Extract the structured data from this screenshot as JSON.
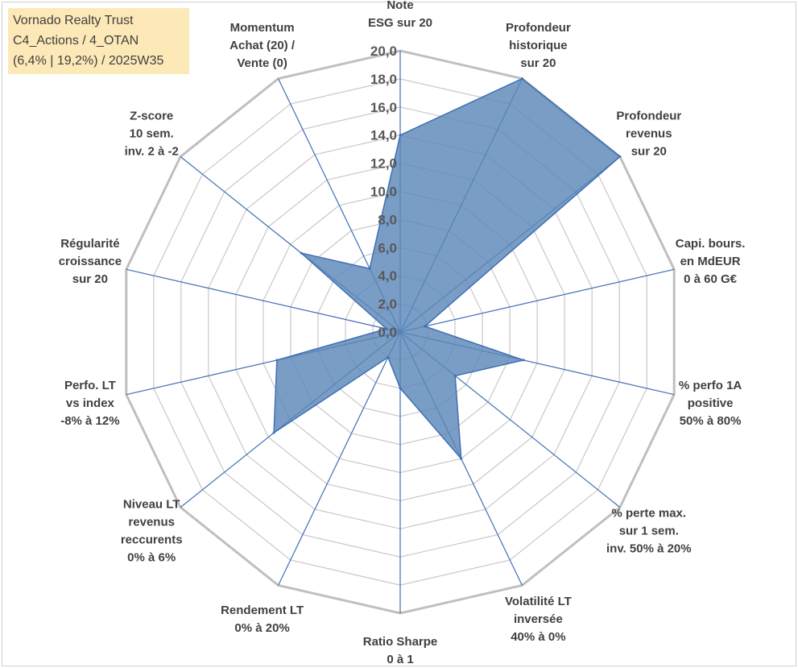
{
  "info_box": {
    "line1": "Vornado Realty Trust",
    "line2": "C4_Actions / 4_OTAN",
    "line3": "(6,4% | 19,2%) / 2025W35"
  },
  "colors": {
    "fill": "#5b87b8",
    "stroke": "#3f6fb5",
    "grid": "#c8c8c8",
    "info_bg": "#fde9b8"
  },
  "chart_data": {
    "type": "radar",
    "rlim": [
      0,
      20
    ],
    "tick_labels": [
      "0,0",
      "2,0",
      "4,0",
      "6,0",
      "8,0",
      "10,0",
      "12,0",
      "14,0",
      "16,0",
      "18,0",
      "20,0"
    ],
    "axes": [
      [
        "Note",
        "ESG sur 20"
      ],
      [
        "Profondeur",
        "historique",
        "sur 20"
      ],
      [
        "Profondeur",
        "revenus",
        "sur 20"
      ],
      [
        "Capi. bours.",
        "en MdEUR",
        "0 à 60 G€"
      ],
      [
        "% perfo 1A",
        "positive",
        "50% à 80%"
      ],
      [
        "% perte max.",
        "sur 1 sem.",
        "inv. 50% à 20%"
      ],
      [
        "Volatilité LT",
        "inversée",
        "40% à 0%"
      ],
      [
        "Ratio Sharpe",
        "0 à 1"
      ],
      [
        "Rendement LT",
        "0% à 20%"
      ],
      [
        "Niveau LT",
        "revenus",
        "reccurents",
        "0% à 6%"
      ],
      [
        "Perfo. LT",
        "vs index",
        "-8% à 12%"
      ],
      [
        "Régularité",
        "croissance",
        "sur 20"
      ],
      [
        "Z-score",
        "10 sem.",
        "inv. 2 à -2"
      ],
      [
        "Momentum",
        "Achat (20) /",
        "Vente (0)"
      ]
    ],
    "series": [
      {
        "values": [
          14.0,
          20.0,
          20.0,
          1.8,
          9.0,
          5.0,
          10.0,
          4.0,
          2.0,
          11.5,
          9.0,
          1.0,
          9.0,
          5.0
        ]
      }
    ],
    "grid": true,
    "legend": "none"
  }
}
